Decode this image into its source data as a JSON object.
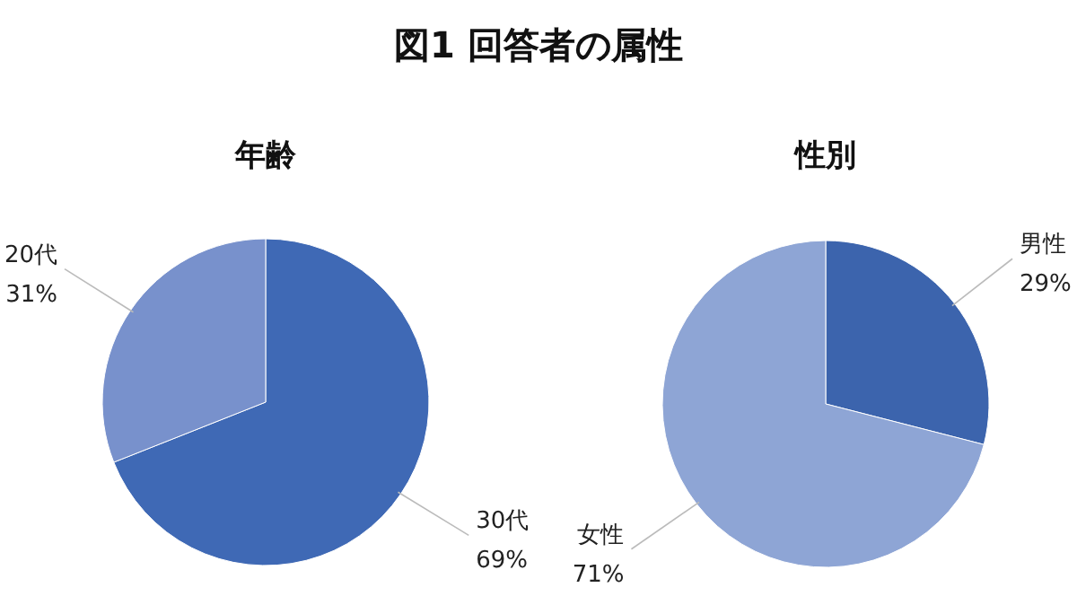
{
  "chart_data": [
    {
      "type": "pie",
      "title": "年齢",
      "annotations": [
        "図1 回答者の属性"
      ],
      "categories": [
        "30代",
        "20代"
      ],
      "values": [
        69,
        31
      ],
      "value_labels": [
        "69%",
        "31%"
      ],
      "colors": [
        "#3f69b5",
        "#7891cc"
      ]
    },
    {
      "type": "pie",
      "title": "性別",
      "categories": [
        "男性",
        "女性"
      ],
      "values": [
        29,
        71
      ],
      "value_labels": [
        "29%",
        "71%"
      ],
      "colors": [
        "#3c64ad",
        "#8ea5d5"
      ]
    }
  ]
}
